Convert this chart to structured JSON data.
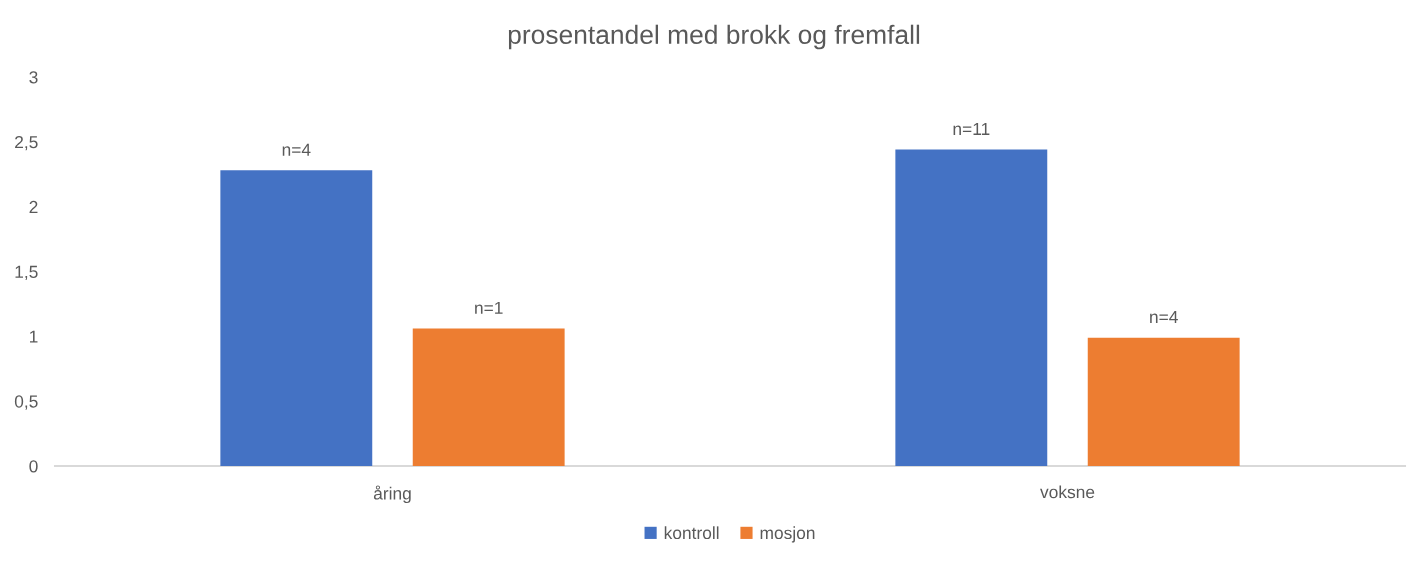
{
  "chart_data": {
    "type": "bar",
    "title": "prosentandel med brokk og fremfall",
    "categories": [
      "åring",
      "voksne"
    ],
    "series": [
      {
        "name": "kontroll",
        "color": "#4472c4",
        "values": [
          2.28,
          2.44
        ]
      },
      {
        "name": "mosjon",
        "color": "#ed7d31",
        "values": [
          1.06,
          0.99
        ]
      }
    ],
    "annotations": [
      "n=4",
      "n=1",
      "n=11",
      "n=4"
    ],
    "ylim": [
      0,
      3
    ],
    "yticks": [
      0,
      {
        "value": 0.5,
        "label": "0,5"
      },
      1,
      {
        "value": 1.5,
        "label": "1,5"
      },
      2,
      {
        "value": 2.5,
        "label": "2,5"
      },
      3
    ],
    "grid": false,
    "legend": "bottom"
  }
}
